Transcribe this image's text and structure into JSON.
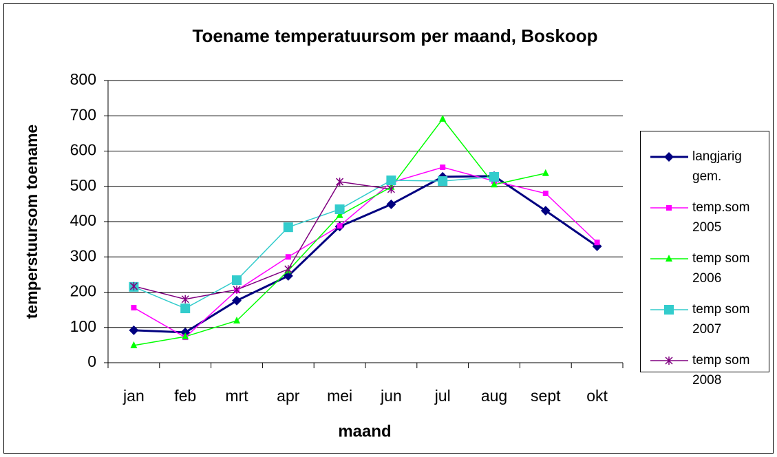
{
  "chart_data": {
    "type": "line",
    "title": "Toename temperatuursom per maand, Boskoop",
    "x_label": "maand",
    "y_label": "temperstuursom toename",
    "categories": [
      "jan",
      "feb",
      "mrt",
      "apr",
      "mei",
      "jun",
      "jul",
      "aug",
      "sept",
      "okt"
    ],
    "ylim": [
      0,
      800
    ],
    "yticks": [
      0,
      100,
      200,
      300,
      400,
      500,
      600,
      700,
      800
    ],
    "grid": true,
    "legend": "right",
    "series": [
      {
        "name": "langjarig gem.",
        "color": "#000080",
        "marker": "diamond",
        "values": [
          92,
          86,
          176,
          246,
          386,
          449,
          527,
          529,
          431,
          330
        ]
      },
      {
        "name": "temp.som 2005",
        "color": "#ff00ff",
        "marker": "square",
        "values": [
          156,
          72,
          205,
          300,
          388,
          511,
          554,
          515,
          480,
          341
        ]
      },
      {
        "name": "temp som 2006",
        "color": "#00ff00",
        "marker": "triangle",
        "values": [
          49,
          74,
          119,
          261,
          418,
          498,
          691,
          505,
          537,
          null
        ]
      },
      {
        "name": "temp som 2007",
        "color": "#33cccc",
        "marker": "bigsquare",
        "values": [
          215,
          154,
          234,
          384,
          435,
          517,
          515,
          527,
          null,
          null
        ]
      },
      {
        "name": "temp som 2008",
        "color": "#800080",
        "marker": "star",
        "values": [
          217,
          180,
          207,
          265,
          513,
          492,
          null,
          null,
          null,
          null
        ]
      }
    ]
  }
}
